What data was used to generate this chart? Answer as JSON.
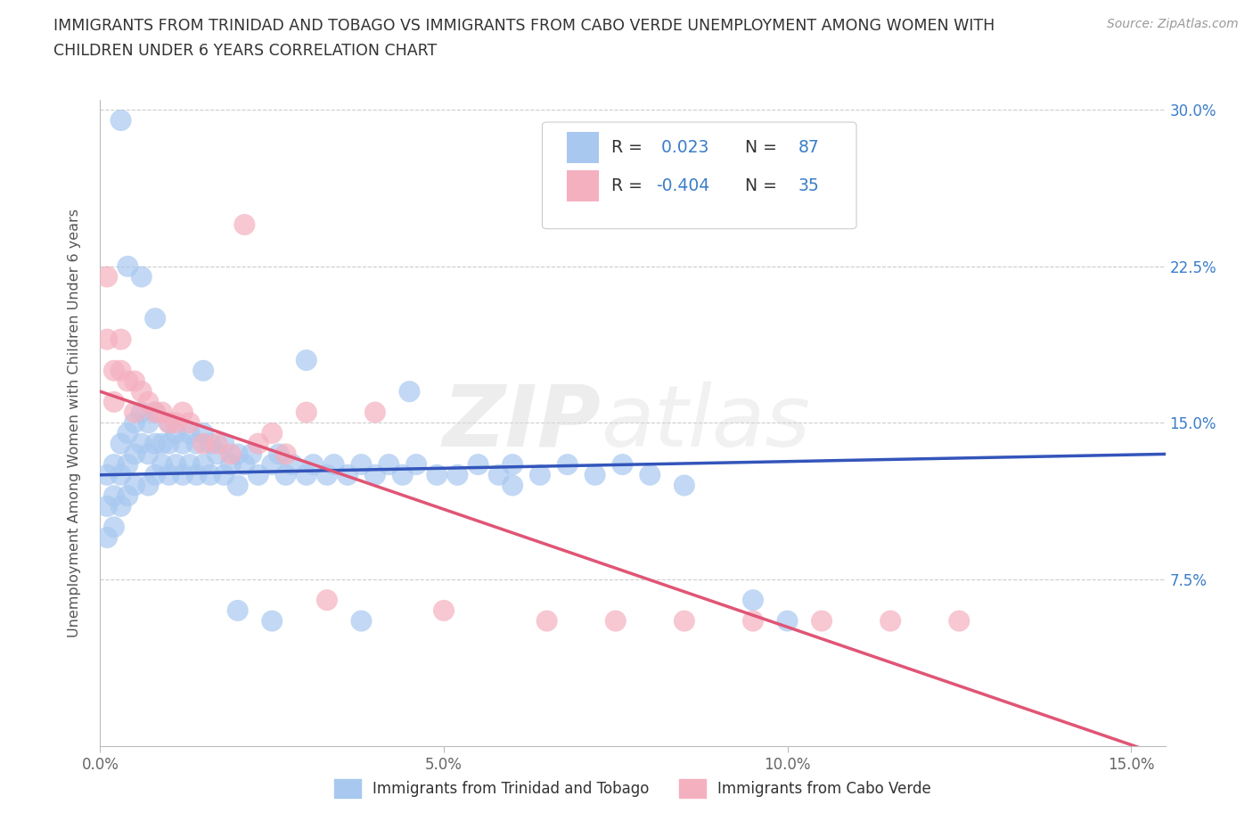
{
  "title_line1": "IMMIGRANTS FROM TRINIDAD AND TOBAGO VS IMMIGRANTS FROM CABO VERDE UNEMPLOYMENT AMONG WOMEN WITH",
  "title_line2": "CHILDREN UNDER 6 YEARS CORRELATION CHART",
  "source_text": "Source: ZipAtlas.com",
  "watermark_text": "ZIPatlas",
  "ylabel": "Unemployment Among Women with Children Under 6 years",
  "xlim": [
    0.0,
    0.155
  ],
  "ylim": [
    -0.005,
    0.305
  ],
  "xtick_vals": [
    0.0,
    0.05,
    0.1,
    0.15
  ],
  "xticklabels": [
    "0.0%",
    "5.0%",
    "10.0%",
    "15.0%"
  ],
  "ytick_vals": [
    0.075,
    0.15,
    0.225,
    0.3
  ],
  "yticklabels_right": [
    "7.5%",
    "15.0%",
    "22.5%",
    "30.0%"
  ],
  "blue_color": "#A8C8F0",
  "pink_color": "#F5B0C0",
  "trend_blue_color": "#3355BB",
  "trend_pink_color": "#E05575",
  "accent_color": "#3A7DC9",
  "grid_color": "#CCCCCC",
  "text_color": "#333333",
  "background_color": "#FFFFFF",
  "blue_x": [
    0.001,
    0.001,
    0.001,
    0.002,
    0.002,
    0.002,
    0.003,
    0.003,
    0.003,
    0.004,
    0.004,
    0.004,
    0.005,
    0.005,
    0.005,
    0.006,
    0.006,
    0.007,
    0.007,
    0.007,
    0.008,
    0.008,
    0.008,
    0.009,
    0.009,
    0.01,
    0.01,
    0.01,
    0.011,
    0.011,
    0.012,
    0.012,
    0.013,
    0.013,
    0.014,
    0.014,
    0.015,
    0.015,
    0.016,
    0.016,
    0.017,
    0.018,
    0.018,
    0.019,
    0.02,
    0.02,
    0.021,
    0.022,
    0.023,
    0.025,
    0.026,
    0.027,
    0.028,
    0.03,
    0.031,
    0.033,
    0.034,
    0.036,
    0.038,
    0.04,
    0.042,
    0.044,
    0.046,
    0.049,
    0.052,
    0.055,
    0.058,
    0.06,
    0.064,
    0.068,
    0.072,
    0.076,
    0.08,
    0.085,
    0.003,
    0.004,
    0.006,
    0.008,
    0.015,
    0.03,
    0.045,
    0.06,
    0.025,
    0.02,
    0.038,
    0.095,
    0.1
  ],
  "blue_y": [
    0.125,
    0.11,
    0.095,
    0.13,
    0.115,
    0.1,
    0.14,
    0.125,
    0.11,
    0.145,
    0.13,
    0.115,
    0.15,
    0.135,
    0.12,
    0.155,
    0.14,
    0.15,
    0.135,
    0.12,
    0.155,
    0.14,
    0.125,
    0.14,
    0.13,
    0.15,
    0.14,
    0.125,
    0.145,
    0.13,
    0.14,
    0.125,
    0.145,
    0.13,
    0.14,
    0.125,
    0.145,
    0.13,
    0.14,
    0.125,
    0.135,
    0.14,
    0.125,
    0.13,
    0.135,
    0.12,
    0.13,
    0.135,
    0.125,
    0.13,
    0.135,
    0.125,
    0.13,
    0.125,
    0.13,
    0.125,
    0.13,
    0.125,
    0.13,
    0.125,
    0.13,
    0.125,
    0.13,
    0.125,
    0.125,
    0.13,
    0.125,
    0.13,
    0.125,
    0.13,
    0.125,
    0.13,
    0.125,
    0.12,
    0.295,
    0.225,
    0.22,
    0.2,
    0.175,
    0.18,
    0.165,
    0.12,
    0.055,
    0.06,
    0.055,
    0.065,
    0.055
  ],
  "pink_x": [
    0.001,
    0.001,
    0.002,
    0.002,
    0.003,
    0.003,
    0.004,
    0.005,
    0.005,
    0.006,
    0.007,
    0.008,
    0.009,
    0.01,
    0.011,
    0.012,
    0.013,
    0.015,
    0.017,
    0.019,
    0.021,
    0.023,
    0.025,
    0.027,
    0.03,
    0.033,
    0.04,
    0.05,
    0.065,
    0.075,
    0.085,
    0.095,
    0.105,
    0.115,
    0.125
  ],
  "pink_y": [
    0.22,
    0.19,
    0.175,
    0.16,
    0.19,
    0.175,
    0.17,
    0.17,
    0.155,
    0.165,
    0.16,
    0.155,
    0.155,
    0.15,
    0.15,
    0.155,
    0.15,
    0.14,
    0.14,
    0.135,
    0.245,
    0.14,
    0.145,
    0.135,
    0.155,
    0.065,
    0.155,
    0.06,
    0.055,
    0.055,
    0.055,
    0.055,
    0.055,
    0.055,
    0.055
  ]
}
